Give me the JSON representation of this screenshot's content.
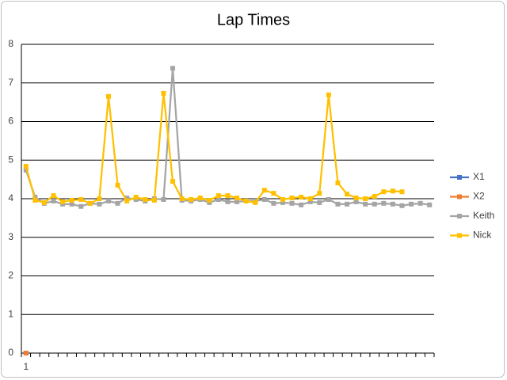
{
  "chart_data": {
    "type": "line",
    "title": "Lap Times",
    "categories": [
      "1",
      null,
      null,
      null,
      null,
      null,
      null,
      null,
      null,
      null,
      null,
      null,
      null,
      null,
      null,
      null,
      null,
      null,
      null,
      null,
      null,
      null,
      null,
      null,
      null,
      null,
      null,
      null,
      null,
      null,
      null,
      null,
      null,
      null,
      null,
      null,
      null,
      null,
      null,
      null,
      null,
      null,
      null,
      null,
      null
    ],
    "series": [
      {
        "name": "X1",
        "color": "#4472c4",
        "values": [
          0,
          null,
          null,
          null,
          null,
          null,
          null,
          null,
          null,
          null,
          null,
          null,
          null,
          null,
          null,
          null,
          null,
          null,
          null,
          null,
          null,
          null,
          null,
          null,
          null,
          null,
          null,
          null,
          null,
          null,
          null,
          null,
          null,
          null,
          null,
          null,
          null,
          null,
          null,
          null,
          null,
          null,
          null,
          null,
          null
        ]
      },
      {
        "name": "X2",
        "color": "#ed7d31",
        "values": [
          0,
          null,
          null,
          null,
          null,
          null,
          null,
          null,
          null,
          null,
          null,
          null,
          null,
          null,
          null,
          null,
          null,
          null,
          null,
          null,
          null,
          null,
          null,
          null,
          null,
          null,
          null,
          null,
          null,
          null,
          null,
          null,
          null,
          null,
          null,
          null,
          null,
          null,
          null,
          null,
          null,
          null,
          null,
          null,
          null
        ]
      },
      {
        "name": "Keith",
        "color": "#a5a5a5",
        "values": [
          4.74,
          4.04,
          3.88,
          3.94,
          3.86,
          3.86,
          3.8,
          3.88,
          3.86,
          3.94,
          3.88,
          4.02,
          3.98,
          3.94,
          4.0,
          3.98,
          7.38,
          3.96,
          3.94,
          3.98,
          3.9,
          3.98,
          3.92,
          3.92,
          3.94,
          3.94,
          3.98,
          3.88,
          3.9,
          3.88,
          3.84,
          3.92,
          3.9,
          3.98,
          3.86,
          3.86,
          3.92,
          3.86,
          3.86,
          3.88,
          3.86,
          3.82,
          3.86,
          3.88,
          3.84
        ]
      },
      {
        "name": "Nick",
        "color": "#ffc000",
        "values": [
          4.84,
          3.96,
          3.9,
          4.08,
          3.92,
          3.96,
          3.98,
          3.88,
          4.0,
          6.65,
          4.35,
          3.94,
          4.04,
          3.98,
          3.96,
          6.73,
          4.45,
          4.0,
          3.98,
          4.02,
          3.96,
          4.08,
          4.08,
          4.02,
          3.94,
          3.9,
          4.22,
          4.14,
          3.98,
          4.02,
          4.04,
          4.0,
          4.14,
          6.69,
          4.41,
          4.12,
          4.02,
          4.0,
          4.06,
          4.18,
          4.2,
          4.18,
          null,
          null,
          null
        ]
      }
    ],
    "ylim": [
      0,
      8
    ],
    "yticks": [
      0,
      1,
      2,
      3,
      4,
      5,
      6,
      7,
      8
    ],
    "grid": true,
    "legend": "right"
  }
}
